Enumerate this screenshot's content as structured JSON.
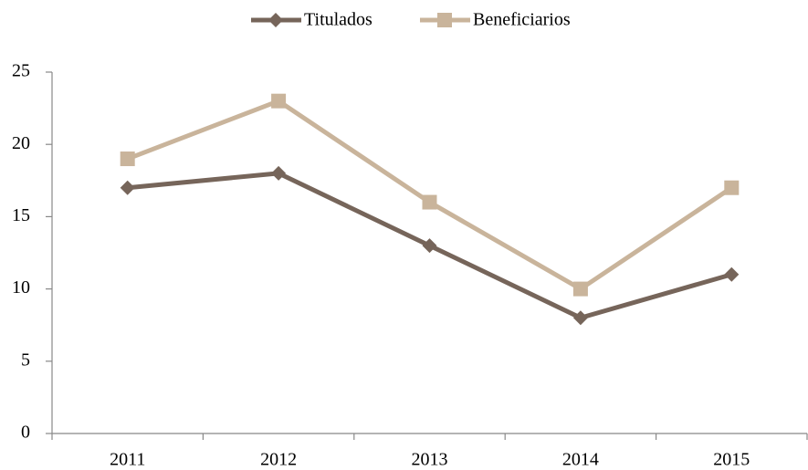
{
  "chart_data": {
    "type": "line",
    "categories": [
      "2011",
      "2012",
      "2013",
      "2014",
      "2015"
    ],
    "series": [
      {
        "name": "Titulados",
        "color": "#76655a",
        "marker": "diamond",
        "values": [
          17,
          18,
          13,
          8,
          11
        ]
      },
      {
        "name": "Beneficiarios",
        "color": "#c9b49b",
        "marker": "square",
        "values": [
          19,
          23,
          16,
          10,
          17
        ]
      }
    ],
    "ylim": [
      0,
      25
    ],
    "yticks": [
      0,
      5,
      10,
      15,
      20,
      25
    ],
    "grid": false,
    "legend": "top"
  }
}
